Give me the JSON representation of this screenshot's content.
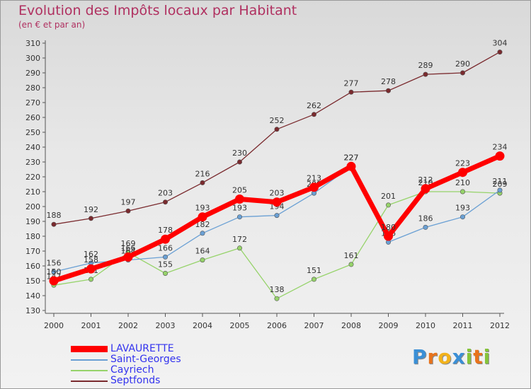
{
  "header": {
    "title": "Evolution des Impôts locaux par Habitant",
    "subtitle": "(en € et par an)"
  },
  "logo": {
    "letters": [
      "P",
      "r",
      "o",
      "x",
      "i",
      "t",
      "i"
    ],
    "colors": [
      "#3a8fd6",
      "#e8731c",
      "#f2b21b",
      "#3a8fd6",
      "#86c43a",
      "#e8731c",
      "#86c43a"
    ]
  },
  "chart_data": {
    "type": "line",
    "title": "Evolution des Impôts locaux par Habitant",
    "subtitle": "(en € et par an)",
    "x": [
      "2000",
      "2001",
      "2002",
      "2003",
      "2004",
      "2005",
      "2006",
      "2007",
      "2008",
      "2009",
      "2010",
      "2011",
      "2012"
    ],
    "ylim": [
      130,
      310
    ],
    "yticks": [
      130,
      140,
      150,
      160,
      170,
      180,
      190,
      200,
      210,
      220,
      230,
      240,
      250,
      260,
      270,
      280,
      290,
      300,
      310
    ],
    "grid": false,
    "legend": "bottom-left",
    "series": [
      {
        "name": "LAVAURETTE",
        "color": "#ff0000",
        "values": [
          150,
          158,
          166,
          178,
          193,
          205,
          203,
          213,
          227,
          180,
          212,
          223,
          234
        ],
        "labels": [
          "150",
          "158",
          "166",
          "178",
          "193",
          "205",
          "203",
          "213",
          "227",
          "180",
          "212",
          "223",
          "234"
        ]
      },
      {
        "name": "Saint-Georges",
        "color": "#6aa0d4",
        "values": [
          156,
          162,
          164,
          166,
          182,
          193,
          194,
          209,
          227,
          176,
          186,
          193,
          211
        ],
        "labels": [
          "156",
          "162",
          "164",
          "166",
          "182",
          "193",
          "194",
          "209",
          "227",
          "176",
          "186",
          "193",
          "211"
        ]
      },
      {
        "name": "Cayriech",
        "color": "#96d36a",
        "values": [
          147,
          151,
          169,
          155,
          164,
          172,
          138,
          151,
          161,
          201,
          210,
          210,
          209
        ],
        "labels": [
          "147",
          "151",
          "169",
          "155",
          "164",
          "172",
          "138",
          "151",
          "161",
          "201",
          "210",
          "210",
          "209"
        ]
      },
      {
        "name": "Septfonds",
        "color": "#7a2a2e",
        "values": [
          188,
          192,
          197,
          203,
          216,
          230,
          252,
          262,
          277,
          278,
          289,
          290,
          304
        ],
        "labels": [
          "188",
          "192",
          "197",
          "203",
          "216",
          "230",
          "252",
          "262",
          "277",
          "278",
          "289",
          "290",
          "304"
        ]
      }
    ]
  }
}
